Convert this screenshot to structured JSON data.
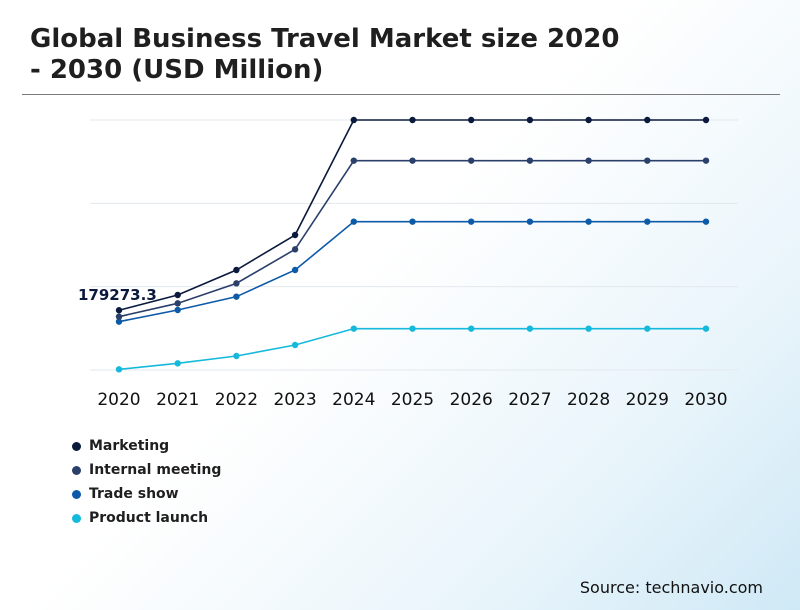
{
  "header": {
    "title_line1": "Global Business Travel Market size 2020",
    "title_line2": "- 2030 (USD Million)"
  },
  "source": "Source: technavio.com",
  "chart_data": {
    "type": "line",
    "title": "Global Business Travel Market size 2020 - 2030 (USD Million)",
    "xlabel": "",
    "ylabel": "",
    "x": [
      "2020",
      "2021",
      "2022",
      "2023",
      "2024",
      "2025",
      "2026",
      "2027",
      "2028",
      "2029",
      "2030"
    ],
    "ylim": [
      0,
      750000
    ],
    "grid": true,
    "legend_position": "bottom-left",
    "annotations": [
      {
        "series": "Marketing",
        "x": "2020",
        "text": "179273.3"
      }
    ],
    "series": [
      {
        "name": "Marketing",
        "color": "#0b1a3c",
        "values": [
          179273.3,
          225000,
          300000,
          405000,
          750000,
          750000,
          750000,
          750000,
          750000,
          750000,
          750000
        ]
      },
      {
        "name": "Internal meeting",
        "color": "#2b3f6b",
        "values": [
          160000,
          200000,
          260000,
          362000,
          628000,
          628000,
          628000,
          628000,
          628000,
          628000,
          628000
        ]
      },
      {
        "name": "Trade show",
        "color": "#0c5aa8",
        "values": [
          145000,
          180000,
          220000,
          300000,
          445000,
          445000,
          445000,
          445000,
          445000,
          445000,
          445000
        ]
      },
      {
        "name": "Product launch",
        "color": "#14b9dc",
        "values": [
          2000,
          20000,
          42000,
          75000,
          124000,
          124000,
          124000,
          124000,
          124000,
          124000,
          124000
        ]
      }
    ]
  }
}
